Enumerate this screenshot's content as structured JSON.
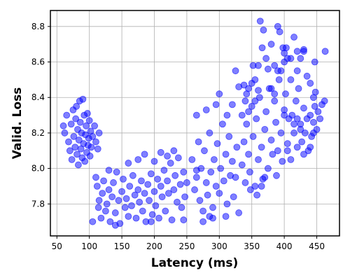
{
  "chart_data": {
    "type": "scatter",
    "title": "",
    "xlabel": "Latency (ms)",
    "ylabel": "Valid. Loss",
    "xlim": [
      40,
      485
    ],
    "ylim": [
      7.62,
      8.89
    ],
    "xticks": [
      50,
      100,
      150,
      200,
      250,
      300,
      350,
      400,
      450
    ],
    "yticks": [
      7.8,
      8.0,
      8.2,
      8.4,
      8.6,
      8.8
    ],
    "ytick_labels": [
      "7.8",
      "8.0",
      "8.2",
      "8.4",
      "8.6",
      "8.8"
    ],
    "grid": true,
    "legend": "none",
    "marker_color": "#0000ff",
    "marker_alpha": 0.5,
    "points": [
      [
        60,
        8.24
      ],
      [
        62,
        8.2
      ],
      [
        65,
        8.3
      ],
      [
        68,
        8.15
      ],
      [
        70,
        8.1
      ],
      [
        72,
        8.25
      ],
      [
        73,
        8.05
      ],
      [
        75,
        8.33
      ],
      [
        76,
        8.18
      ],
      [
        78,
        8.12
      ],
      [
        79,
        8.28
      ],
      [
        80,
        8.35
      ],
      [
        81,
        8.08
      ],
      [
        82,
        8.22
      ],
      [
        83,
        8.02
      ],
      [
        84,
        8.16
      ],
      [
        85,
        8.38
      ],
      [
        86,
        8.26
      ],
      [
        87,
        8.11
      ],
      [
        88,
        8.2
      ],
      [
        89,
        8.06
      ],
      [
        90,
        8.39
      ],
      [
        91,
        8.14
      ],
      [
        92,
        8.3
      ],
      [
        93,
        8.04
      ],
      [
        94,
        8.19
      ],
      [
        95,
        8.24
      ],
      [
        96,
        8.09
      ],
      [
        97,
        8.31
      ],
      [
        98,
        8.13
      ],
      [
        99,
        8.17
      ],
      [
        100,
        8.27
      ],
      [
        101,
        8.07
      ],
      [
        102,
        8.21
      ],
      [
        103,
        8.12
      ],
      [
        105,
        8.18
      ],
      [
        108,
        8.24
      ],
      [
        110,
        8.15
      ],
      [
        113,
        8.11
      ],
      [
        115,
        8.2
      ],
      [
        110,
        7.95
      ],
      [
        112,
        7.9
      ],
      [
        114,
        7.78
      ],
      [
        115,
        7.82
      ],
      [
        118,
        7.72
      ],
      [
        120,
        7.86
      ],
      [
        122,
        7.93
      ],
      [
        125,
        7.76
      ],
      [
        127,
        7.8
      ],
      [
        130,
        7.88
      ],
      [
        132,
        7.7
      ],
      [
        135,
        7.84
      ],
      [
        137,
        7.92
      ],
      [
        140,
        7.75
      ],
      [
        142,
        7.98
      ],
      [
        145,
        7.82
      ],
      [
        147,
        7.69
      ],
      [
        150,
        7.87
      ],
      [
        152,
        7.94
      ],
      [
        155,
        7.78
      ],
      [
        157,
        7.83
      ],
      [
        160,
        7.73
      ],
      [
        162,
        7.9
      ],
      [
        165,
        7.79
      ],
      [
        167,
        7.96
      ],
      [
        170,
        7.85
      ],
      [
        172,
        7.72
      ],
      [
        175,
        7.88
      ],
      [
        177,
        7.81
      ],
      [
        180,
        7.93
      ],
      [
        182,
        7.76
      ],
      [
        185,
        7.86
      ],
      [
        187,
        7.7
      ],
      [
        190,
        7.91
      ],
      [
        192,
        7.82
      ],
      [
        195,
        7.97
      ],
      [
        197,
        7.74
      ],
      [
        200,
        7.87
      ],
      [
        202,
        7.79
      ],
      [
        205,
        7.94
      ],
      [
        207,
        7.72
      ],
      [
        210,
        7.9
      ],
      [
        212,
        7.84
      ],
      [
        215,
        7.99
      ],
      [
        217,
        7.76
      ],
      [
        220,
        7.93
      ],
      [
        222,
        7.86
      ],
      [
        225,
        8.03
      ],
      [
        227,
        7.71
      ],
      [
        230,
        7.88
      ],
      [
        232,
        7.96
      ],
      [
        235,
        7.81
      ],
      [
        237,
        8.06
      ],
      [
        240,
        7.91
      ],
      [
        242,
        7.78
      ],
      [
        245,
        7.98
      ],
      [
        247,
        7.84
      ],
      [
        250,
        7.92
      ],
      [
        130,
        7.99
      ],
      [
        160,
        8.03
      ],
      [
        175,
        8.05
      ],
      [
        185,
        8.08
      ],
      [
        200,
        8.04
      ],
      [
        210,
        8.09
      ],
      [
        220,
        8.07
      ],
      [
        230,
        8.1
      ],
      [
        105,
        7.7
      ],
      [
        140,
        7.68
      ],
      [
        195,
        7.7
      ],
      [
        245,
        7.71
      ],
      [
        258,
        8.05
      ],
      [
        262,
        7.88
      ],
      [
        265,
        7.95
      ],
      [
        268,
        8.15
      ],
      [
        270,
        7.82
      ],
      [
        272,
        8.0
      ],
      [
        275,
        7.76
      ],
      [
        277,
        8.1
      ],
      [
        280,
        7.92
      ],
      [
        282,
        7.85
      ],
      [
        285,
        8.2
      ],
      [
        287,
        7.98
      ],
      [
        290,
        7.78
      ],
      [
        292,
        8.05
      ],
      [
        295,
        7.9
      ],
      [
        297,
        8.14
      ],
      [
        300,
        7.86
      ],
      [
        302,
        8.0
      ],
      [
        305,
        8.25
      ],
      [
        307,
        7.93
      ],
      [
        310,
        8.08
      ],
      [
        312,
        7.8
      ],
      [
        315,
        8.18
      ],
      [
        317,
        7.96
      ],
      [
        320,
        8.04
      ],
      [
        322,
        7.84
      ],
      [
        325,
        7.95
      ],
      [
        327,
        8.12
      ],
      [
        330,
        7.75
      ],
      [
        275,
        7.7
      ],
      [
        290,
        7.72
      ],
      [
        310,
        7.73
      ],
      [
        265,
        8.3
      ],
      [
        280,
        8.33
      ],
      [
        295,
        8.36
      ],
      [
        300,
        8.42
      ],
      [
        312,
        8.3
      ],
      [
        320,
        8.36
      ],
      [
        265,
        7.99
      ],
      [
        285,
        7.73
      ],
      [
        335,
        8.02
      ],
      [
        338,
        8.15
      ],
      [
        340,
        7.92
      ],
      [
        342,
        8.25
      ],
      [
        345,
        8.08
      ],
      [
        347,
        7.98
      ],
      [
        350,
        8.35
      ],
      [
        352,
        8.18
      ],
      [
        355,
        7.9
      ],
      [
        357,
        8.28
      ],
      [
        360,
        8.05
      ],
      [
        362,
        8.4
      ],
      [
        365,
        8.12
      ],
      [
        367,
        7.94
      ],
      [
        370,
        8.22
      ],
      [
        372,
        8.32
      ],
      [
        375,
        8.0
      ],
      [
        377,
        8.45
      ],
      [
        380,
        8.16
      ],
      [
        382,
        8.08
      ],
      [
        385,
        8.38
      ],
      [
        387,
        8.26
      ],
      [
        390,
        8.1
      ],
      [
        392,
        8.5
      ],
      [
        395,
        8.2
      ],
      [
        397,
        8.04
      ],
      [
        400,
        8.33
      ],
      [
        402,
        8.42
      ],
      [
        405,
        8.14
      ],
      [
        407,
        8.28
      ],
      [
        345,
        8.45
      ],
      [
        350,
        8.48
      ],
      [
        340,
        8.38
      ],
      [
        355,
        8.5
      ],
      [
        335,
        8.3
      ],
      [
        348,
        7.88
      ],
      [
        358,
        7.85
      ],
      [
        365,
        7.9
      ],
      [
        370,
        7.95
      ],
      [
        388,
        7.96
      ],
      [
        395,
        8.55
      ],
      [
        400,
        8.6
      ],
      [
        405,
        8.62
      ],
      [
        410,
        8.5
      ],
      [
        412,
        8.3
      ],
      [
        415,
        8.2
      ],
      [
        418,
        8.38
      ],
      [
        420,
        8.12
      ],
      [
        422,
        8.45
      ],
      [
        425,
        8.25
      ],
      [
        427,
        8.15
      ],
      [
        430,
        8.34
      ],
      [
        432,
        8.2
      ],
      [
        435,
        8.28
      ],
      [
        437,
        8.1
      ],
      [
        440,
        8.3
      ],
      [
        442,
        8.18
      ],
      [
        445,
        8.26
      ],
      [
        447,
        8.35
      ],
      [
        450,
        8.22
      ],
      [
        452,
        8.32
      ],
      [
        455,
        8.28
      ],
      [
        458,
        8.36
      ],
      [
        462,
        8.38
      ],
      [
        420,
        8.55
      ],
      [
        425,
        8.62
      ],
      [
        430,
        8.66
      ],
      [
        435,
        8.52
      ],
      [
        440,
        8.48
      ],
      [
        445,
        8.4
      ],
      [
        400,
        8.65
      ],
      [
        403,
        8.68
      ],
      [
        410,
        8.62
      ],
      [
        415,
        8.74
      ],
      [
        420,
        8.66
      ],
      [
        390,
        8.8
      ],
      [
        393,
        8.77
      ],
      [
        380,
        8.7
      ],
      [
        375,
        8.56
      ],
      [
        366,
        8.68
      ],
      [
        363,
        8.83
      ],
      [
        368,
        8.78
      ],
      [
        360,
        8.58
      ],
      [
        372,
        8.62
      ],
      [
        385,
        8.58
      ],
      [
        398,
        8.68
      ],
      [
        430,
        8.67
      ],
      [
        447,
        8.6
      ],
      [
        463,
        8.66
      ],
      [
        448,
        8.43
      ],
      [
        400,
        8.3
      ],
      [
        405,
        8.1
      ],
      [
        410,
        8.05
      ],
      [
        415,
        8.25
      ],
      [
        420,
        8.28
      ],
      [
        425,
        8.22
      ],
      [
        430,
        8.08
      ],
      [
        440,
        8.12
      ],
      [
        445,
        8.2
      ],
      [
        380,
        8.45
      ],
      [
        385,
        8.42
      ],
      [
        390,
        8.55
      ],
      [
        360,
        8.44
      ],
      [
        355,
        8.38
      ],
      [
        345,
        8.32
      ],
      [
        338,
        8.47
      ],
      [
        325,
        8.55
      ],
      [
        330,
        8.46
      ],
      [
        352,
        8.58
      ],
      [
        342,
        8.42
      ]
    ]
  }
}
